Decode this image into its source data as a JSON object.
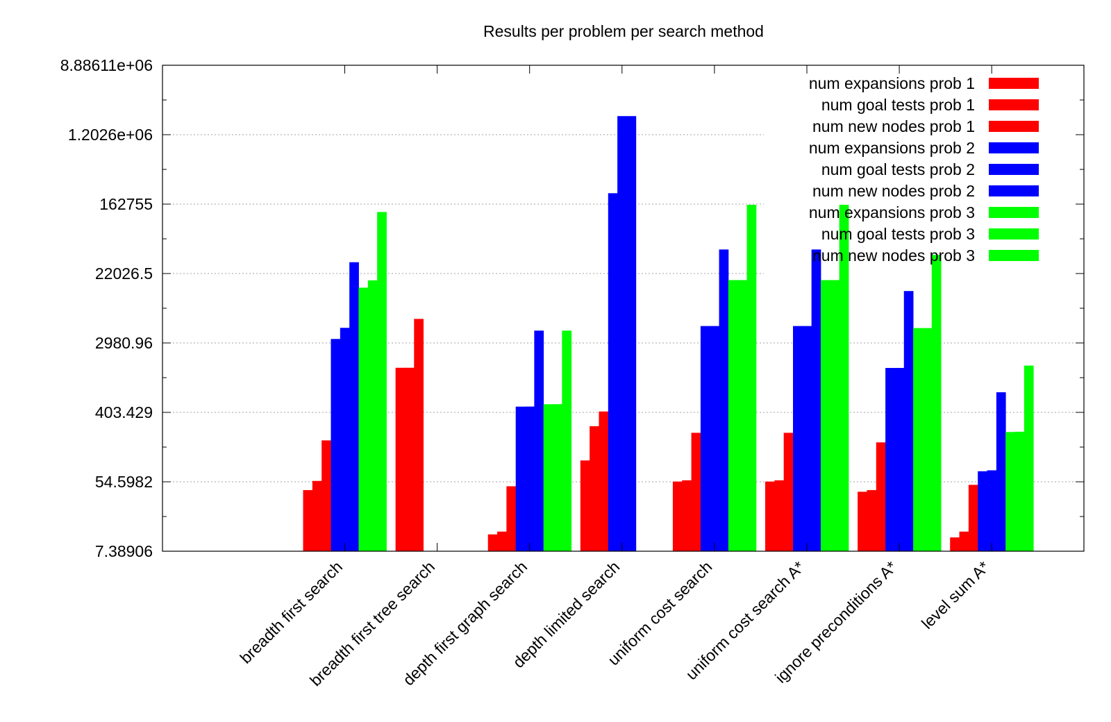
{
  "chart_data": {
    "type": "bar",
    "title": "Results per problem per search method",
    "y_scale": "log",
    "ylim": [
      7.38906,
      8886110
    ],
    "y_ticks": [
      "8.88611e+06",
      "1.2026e+06",
      "162755",
      "22026.5",
      "2980.96",
      "403.429",
      "54.5982",
      "7.38906"
    ],
    "y_tick_values": [
      8886110,
      1202600,
      162755,
      22026.5,
      2980.96,
      403.429,
      54.5982,
      7.38906
    ],
    "grid": "horizontal",
    "legend_position": "top-right",
    "categories": [
      "breadth first search",
      "breadth first tree search",
      "depth first graph search",
      "depth limited search",
      "uniform cost search",
      "uniform cost search A*",
      "ignore preconditions A*",
      "level sum A*"
    ],
    "series": [
      {
        "name": "num expansions prob 1",
        "color": "#ff0000",
        "values": [
          43,
          1458,
          12,
          101,
          55,
          55,
          41,
          11
        ]
      },
      {
        "name": "num goal tests prob 1",
        "color": "#ff0000",
        "values": [
          56,
          1459,
          13,
          271,
          57,
          57,
          43,
          13
        ]
      },
      {
        "name": "num new nodes prob 1",
        "color": "#ff0000",
        "values": [
          180,
          5960,
          48,
          414,
          224,
          224,
          170,
          50
        ]
      },
      {
        "name": "num expansions prob 2",
        "color": "#0000ff",
        "values": [
          3343,
          null,
          476,
          222719,
          4852,
          4852,
          1450,
          74
        ]
      },
      {
        "name": "num goal tests prob 2",
        "color": "#0000ff",
        "values": [
          4609,
          null,
          477,
          2053741,
          4854,
          4854,
          1452,
          76
        ]
      },
      {
        "name": "num new nodes prob 2",
        "color": "#0000ff",
        "values": [
          30509,
          null,
          4253,
          2054119,
          44030,
          44030,
          13303,
          720
        ]
      },
      {
        "name": "num expansions prob 3",
        "color": "#00ff00",
        "values": [
          14663,
          null,
          510,
          null,
          18223,
          18223,
          4574,
          229
        ]
      },
      {
        "name": "num goal tests prob 3",
        "color": "#00ff00",
        "values": [
          18098,
          null,
          511,
          null,
          18225,
          18225,
          4576,
          231
        ]
      },
      {
        "name": "num new nodes prob 3",
        "color": "#00ff00",
        "values": [
          129631,
          null,
          4255,
          null,
          159618,
          159618,
          37678,
          1552
        ]
      }
    ]
  }
}
